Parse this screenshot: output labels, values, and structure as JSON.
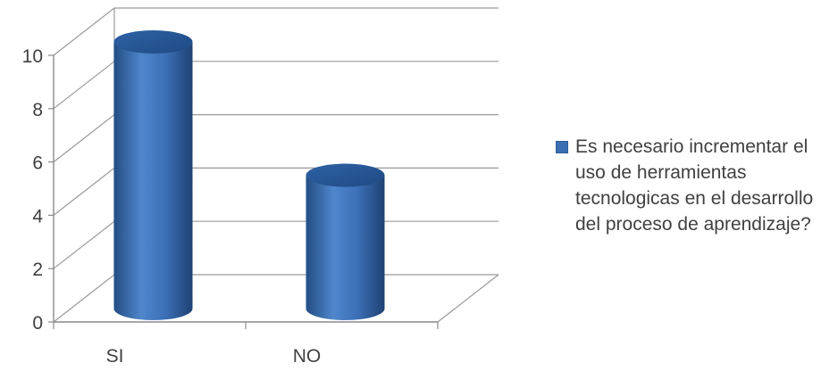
{
  "chart_data": {
    "type": "bar",
    "bar_style": "3d-cylinder",
    "categories": [
      "SI",
      "NO"
    ],
    "series": [
      {
        "name": "Es necesario incrementar el uso de herramientas tecnologicas en el desarrollo del proceso de aprendizaje?",
        "values": [
          10,
          5
        ],
        "color": "#3b6fb2"
      }
    ],
    "y_ticks": [
      "0",
      "2",
      "4",
      "6",
      "8",
      "10"
    ],
    "ylim": [
      0,
      10
    ],
    "grid": true,
    "legend_position": "right"
  }
}
